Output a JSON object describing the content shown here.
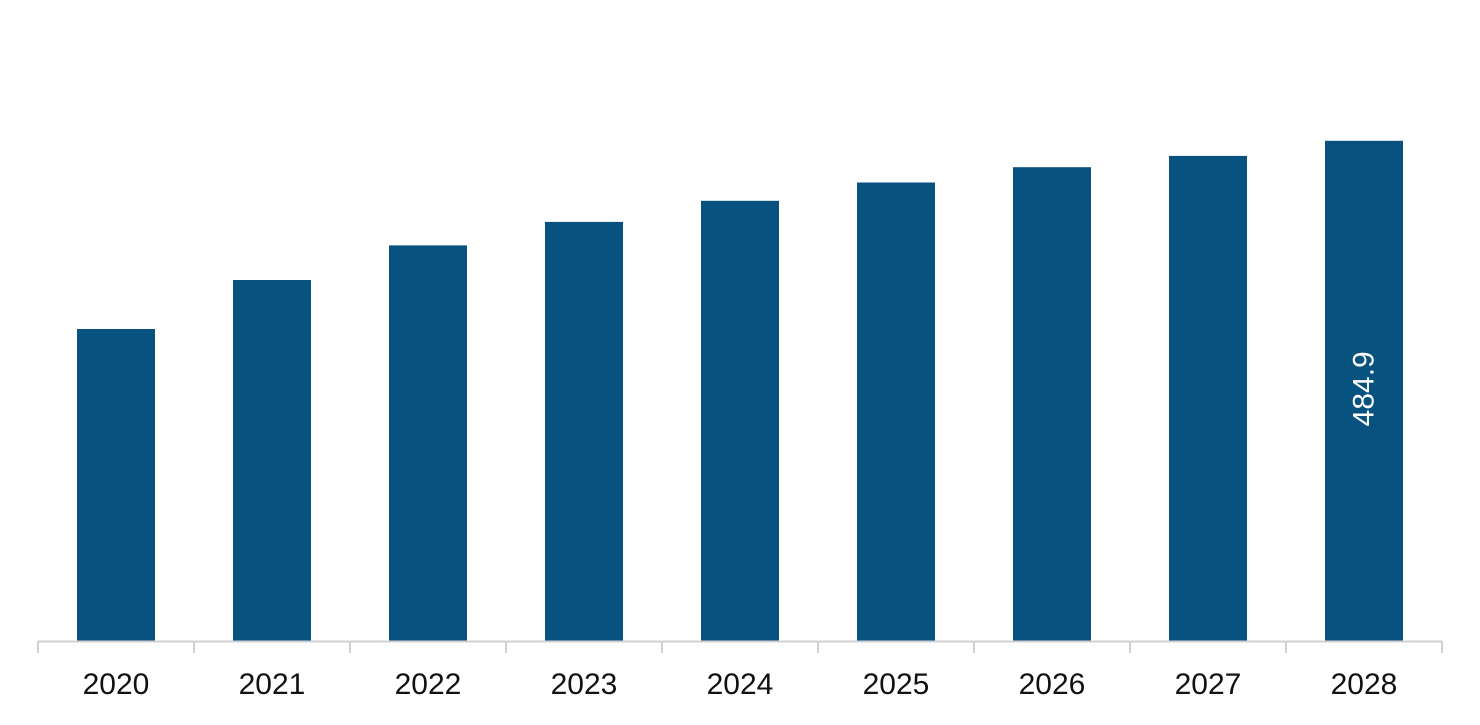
{
  "chart_data": {
    "type": "bar",
    "title": "",
    "xlabel": "",
    "ylabel": "",
    "categories": [
      "2020",
      "2021",
      "2022",
      "2023",
      "2024",
      "2025",
      "2026",
      "2027",
      "2028"
    ],
    "series": [
      {
        "values": [
          302.5,
          350.0,
          383.5,
          406.3,
          426.8,
          444.5,
          459.3,
          470.3,
          484.9
        ],
        "color": "#08527f"
      }
    ],
    "data_labels": [
      {
        "index": 8,
        "text": "484.9",
        "orientation": "vertical"
      }
    ],
    "ylim": [
      0,
      600
    ],
    "grid": false,
    "legend": "none",
    "axis_color": "#d0d0d0",
    "bar_color": "#08527f"
  }
}
